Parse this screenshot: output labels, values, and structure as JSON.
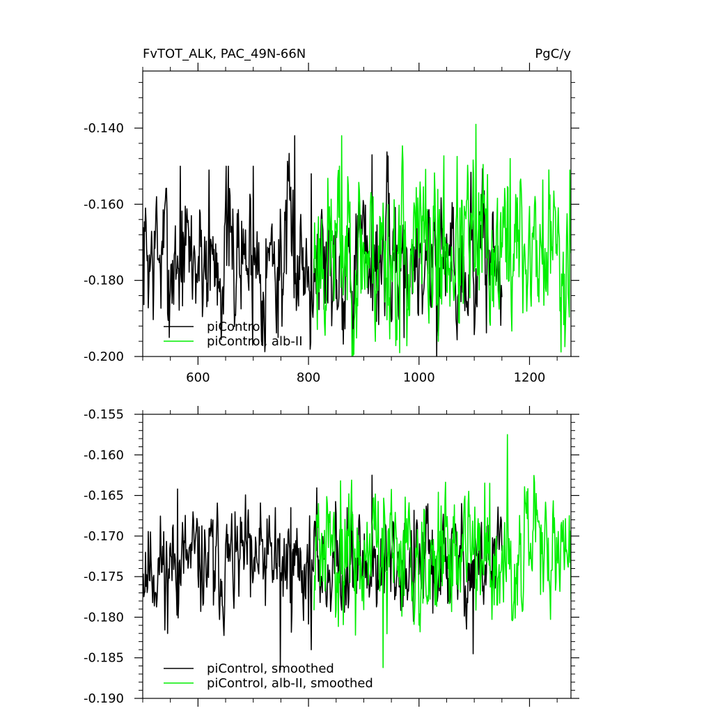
{
  "chart_data": [
    {
      "type": "line",
      "title": "FvTOT_ALK, PAC_49N-66N",
      "units": "PgC/y",
      "xlim": [
        500,
        1275
      ],
      "ylim": [
        -0.2,
        -0.125
      ],
      "x_ticks": [
        600,
        800,
        1000,
        1200
      ],
      "x_tick_labels": [
        "600",
        "800",
        "1000",
        "1200"
      ],
      "y_ticks": [
        -0.14,
        -0.16,
        -0.18,
        -0.2
      ],
      "y_tick_labels": [
        "-0.140",
        "-0.160",
        "-0.180",
        "-0.200"
      ],
      "legend_position": "bottom-left",
      "series": [
        {
          "name": "piControl",
          "color": "#000000",
          "x_start": 500,
          "x_end": 1150,
          "gen": {
            "base": -0.174,
            "noise": 0.0082,
            "seed": 7
          },
          "spikes": [
            [
              505,
              -0.161
            ],
            [
              525,
              -0.158
            ],
            [
              548,
              -0.195
            ],
            [
              568,
              -0.15
            ],
            [
              620,
              -0.151
            ],
            [
              655,
              -0.15
            ],
            [
              700,
              -0.15
            ],
            [
              745,
              -0.195
            ],
            [
              775,
              -0.142
            ],
            [
              805,
              -0.152
            ],
            [
              915,
              -0.147
            ],
            [
              1032,
              -0.2
            ]
          ]
        },
        {
          "name": "piControl, alb-II",
          "color": "#00ee00",
          "x_start": 810,
          "x_end": 1275,
          "gen": {
            "base": -0.172,
            "noise": 0.0095,
            "seed": 23
          },
          "spikes": [
            [
              860,
              -0.142
            ],
            [
              965,
              -0.199
            ],
            [
              1035,
              -0.196
            ],
            [
              1103,
              -0.139
            ],
            [
              1165,
              -0.148
            ],
            [
              1255,
              -0.188
            ],
            [
              1273,
              -0.151
            ]
          ]
        }
      ]
    },
    {
      "type": "line",
      "title": "",
      "xlim": [
        500,
        1275
      ],
      "ylim": [
        -0.19,
        -0.155
      ],
      "x_ticks": [
        600,
        800,
        1000,
        1200
      ],
      "x_tick_labels": [],
      "y_ticks": [
        -0.155,
        -0.16,
        -0.165,
        -0.17,
        -0.175,
        -0.18,
        -0.185,
        -0.19
      ],
      "y_tick_labels": [
        "-0.155",
        "-0.160",
        "-0.165",
        "-0.170",
        "-0.175",
        "-0.180",
        "-0.185",
        "-0.190"
      ],
      "legend_position": "bottom-left",
      "series": [
        {
          "name": "piControl, smoothed",
          "color": "#000000",
          "x_start": 500,
          "x_end": 1150,
          "gen": {
            "base": -0.1735,
            "noise": 0.0028,
            "seed": 11
          },
          "spikes": [
            [
              505,
              -0.172
            ],
            [
              545,
              -0.182
            ],
            [
              563,
              -0.1642
            ],
            [
              628,
              -0.1785
            ],
            [
              695,
              -0.1775
            ],
            [
              740,
              -0.1665
            ],
            [
              768,
              -0.1665
            ],
            [
              749,
              -0.1865
            ],
            [
              805,
              -0.184
            ],
            [
              870,
              -0.1665
            ],
            [
              915,
              -0.1625
            ],
            [
              990,
              -0.1805
            ],
            [
              1025,
              -0.1795
            ],
            [
              1062,
              -0.1685
            ],
            [
              1098,
              -0.1845
            ]
          ]
        },
        {
          "name": "piControl, alb-II, smoothed",
          "color": "#00ee00",
          "x_start": 810,
          "x_end": 1275,
          "gen": {
            "base": -0.172,
            "noise": 0.0032,
            "seed": 31
          },
          "spikes": [
            [
              858,
              -0.1632
            ],
            [
              885,
              -0.1822
            ],
            [
              935,
              -0.1862
            ],
            [
              975,
              -0.1652
            ],
            [
              1002,
              -0.1818
            ],
            [
              1060,
              -0.1705
            ],
            [
              1128,
              -0.1635
            ],
            [
              1160,
              -0.1575
            ],
            [
              1220,
              -0.1772
            ],
            [
              1250,
              -0.1725
            ],
            [
              1272,
              -0.1675
            ]
          ]
        }
      ]
    }
  ]
}
